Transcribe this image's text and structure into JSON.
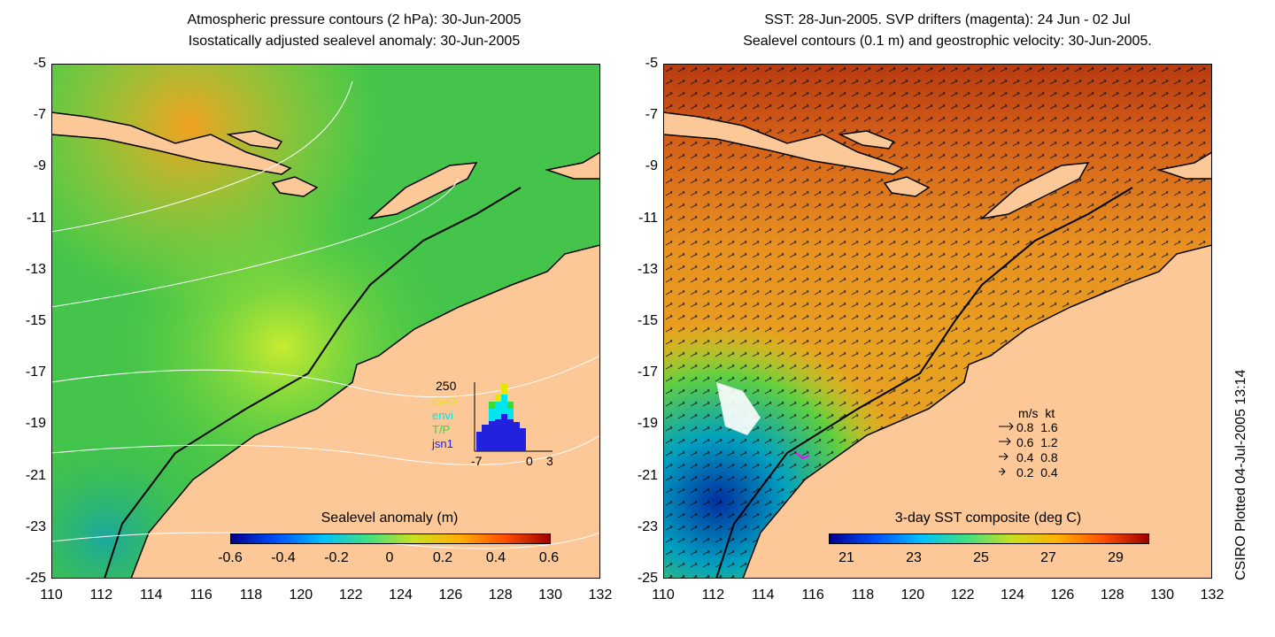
{
  "left_panel": {
    "title_line1": "Atmospheric pressure contours (2 hPa): 30-Jun-2005",
    "title_line2": "Isostatically adjusted sealevel anomaly: 30-Jun-2005",
    "colorbar_label": "Sealevel anomaly (m)",
    "colorbar_ticks": [
      "-0.6",
      "-0.4",
      "-0.2",
      "0",
      "0.2",
      "0.4",
      "0.6"
    ],
    "inset": {
      "ymax_label": "250",
      "x_ticks": [
        "-7",
        "0",
        "3"
      ],
      "legend": [
        {
          "label": "GFO",
          "color": "#e6e600"
        },
        {
          "label": "envi",
          "color": "#00e5ee"
        },
        {
          "label": "T/P",
          "color": "#33dd33"
        },
        {
          "label": "jsn1",
          "color": "#2222dd"
        }
      ]
    }
  },
  "right_panel": {
    "title_line1": "SST: 28-Jun-2005. SVP drifters (magenta): 24 Jun - 02 Jul",
    "title_line2": "Sealevel contours (0.1 m) and geostrophic velocity: 30-Jun-2005.",
    "colorbar_label": "3-day SST composite (deg C)",
    "colorbar_ticks": [
      "21",
      "23",
      "25",
      "27",
      "29"
    ],
    "velocity_legend": {
      "header": "m/s  kt",
      "rows": [
        "0.8  1.6",
        "0.6  1.2",
        "0.4  0.8",
        "0.2  0.4"
      ]
    }
  },
  "axes": {
    "lat_ticks": [
      "-5",
      "-7",
      "-9",
      "-11",
      "-13",
      "-15",
      "-17",
      "-19",
      "-21",
      "-23",
      "-25"
    ],
    "lon_ticks": [
      "110",
      "112",
      "114",
      "116",
      "118",
      "120",
      "122",
      "124",
      "126",
      "128",
      "130",
      "132"
    ]
  },
  "credit": "CSIRO Plotted 04-Jul-2005 13:14",
  "colors": {
    "land": "#fcc898",
    "ocean_left": "#33cc55",
    "ocean_right": "#e08a2a"
  }
}
